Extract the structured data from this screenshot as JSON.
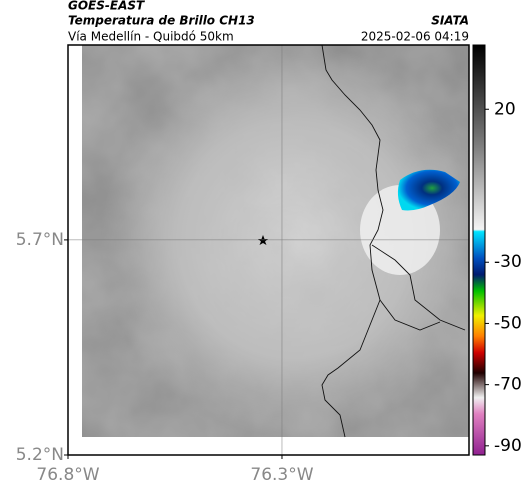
{
  "header": {
    "title": "GOES-EAST",
    "subtitle": "Temperatura de Brillo CH13",
    "region": "Vía Medellín - Quibdó 50km",
    "source": "SIATA",
    "timestamp": "2025-02-06 04:19"
  },
  "map": {
    "xlim": [
      -76.8,
      -75.863
    ],
    "ylim": [
      5.2,
      6.153
    ],
    "xticks": [
      {
        "value": -76.8,
        "label": "76.8°W"
      },
      {
        "value": -76.3,
        "label": "76.3°W"
      }
    ],
    "yticks": [
      {
        "value": 5.2,
        "label": "5.2°N"
      },
      {
        "value": 5.7,
        "label": "5.7°N"
      }
    ],
    "grid": true
  },
  "colorbar": {
    "lim": [
      -93,
      41
    ],
    "ticks": [
      20,
      -30,
      -50,
      -70,
      -90
    ]
  }
}
